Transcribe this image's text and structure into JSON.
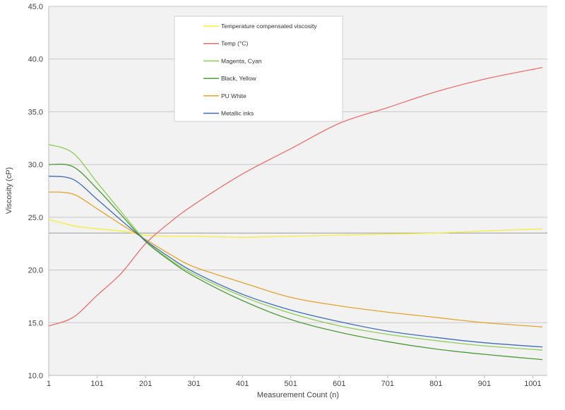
{
  "chart_data": {
    "type": "line",
    "title": "",
    "xlabel": "Measurement Count (n)",
    "ylabel": "Viscosity (cP)",
    "xlim": [
      1,
      1031
    ],
    "ylim": [
      10,
      45
    ],
    "x_ticks": [
      "1",
      "101",
      "201",
      "301",
      "401",
      "501",
      "601",
      "701",
      "801",
      "901",
      "1001"
    ],
    "y_ticks": [
      "10.0",
      "15.0",
      "20.0",
      "25.0",
      "30.0",
      "35.0",
      "40.0",
      "45.0"
    ],
    "grid": "horizontal",
    "reference_line": 23.5,
    "legend_position": "top-center",
    "x": [
      1,
      51,
      101,
      151,
      201,
      251,
      301,
      401,
      501,
      601,
      701,
      801,
      901,
      1021
    ],
    "series": [
      {
        "name": "Temperature compensated viscosity",
        "color": "#f5ee3a",
        "values": [
          24.8,
          24.2,
          23.9,
          23.7,
          23.3,
          23.2,
          23.2,
          23.1,
          23.2,
          23.3,
          23.4,
          23.5,
          23.7,
          23.9
        ]
      },
      {
        "name": "Temp (°C)",
        "color": "#e8716f",
        "values": [
          14.7,
          15.5,
          17.6,
          19.7,
          22.5,
          24.5,
          26.2,
          29.1,
          31.5,
          33.9,
          35.4,
          36.9,
          38.1,
          39.2
        ]
      },
      {
        "name": "Magenta, Cyan",
        "color": "#8fcb5a",
        "values": [
          31.9,
          31.1,
          28.3,
          25.5,
          22.8,
          21.0,
          19.6,
          17.5,
          15.9,
          14.7,
          13.9,
          13.3,
          12.8,
          12.4
        ]
      },
      {
        "name": "Black, Yellow",
        "color": "#4e9a3a",
        "values": [
          30.0,
          29.8,
          27.7,
          25.2,
          22.7,
          20.9,
          19.4,
          17.1,
          15.3,
          14.1,
          13.2,
          12.5,
          12.0,
          11.5
        ]
      },
      {
        "name": "PU White",
        "color": "#e3a42f",
        "values": [
          27.4,
          27.2,
          25.8,
          24.3,
          22.9,
          21.5,
          20.3,
          18.8,
          17.4,
          16.6,
          16.0,
          15.5,
          15.0,
          14.6
        ]
      },
      {
        "name": "Metallic inks",
        "color": "#3e6cb5",
        "values": [
          28.9,
          28.6,
          26.7,
          24.7,
          22.8,
          21.2,
          19.8,
          17.7,
          16.2,
          15.1,
          14.2,
          13.6,
          13.1,
          12.7
        ]
      }
    ]
  }
}
